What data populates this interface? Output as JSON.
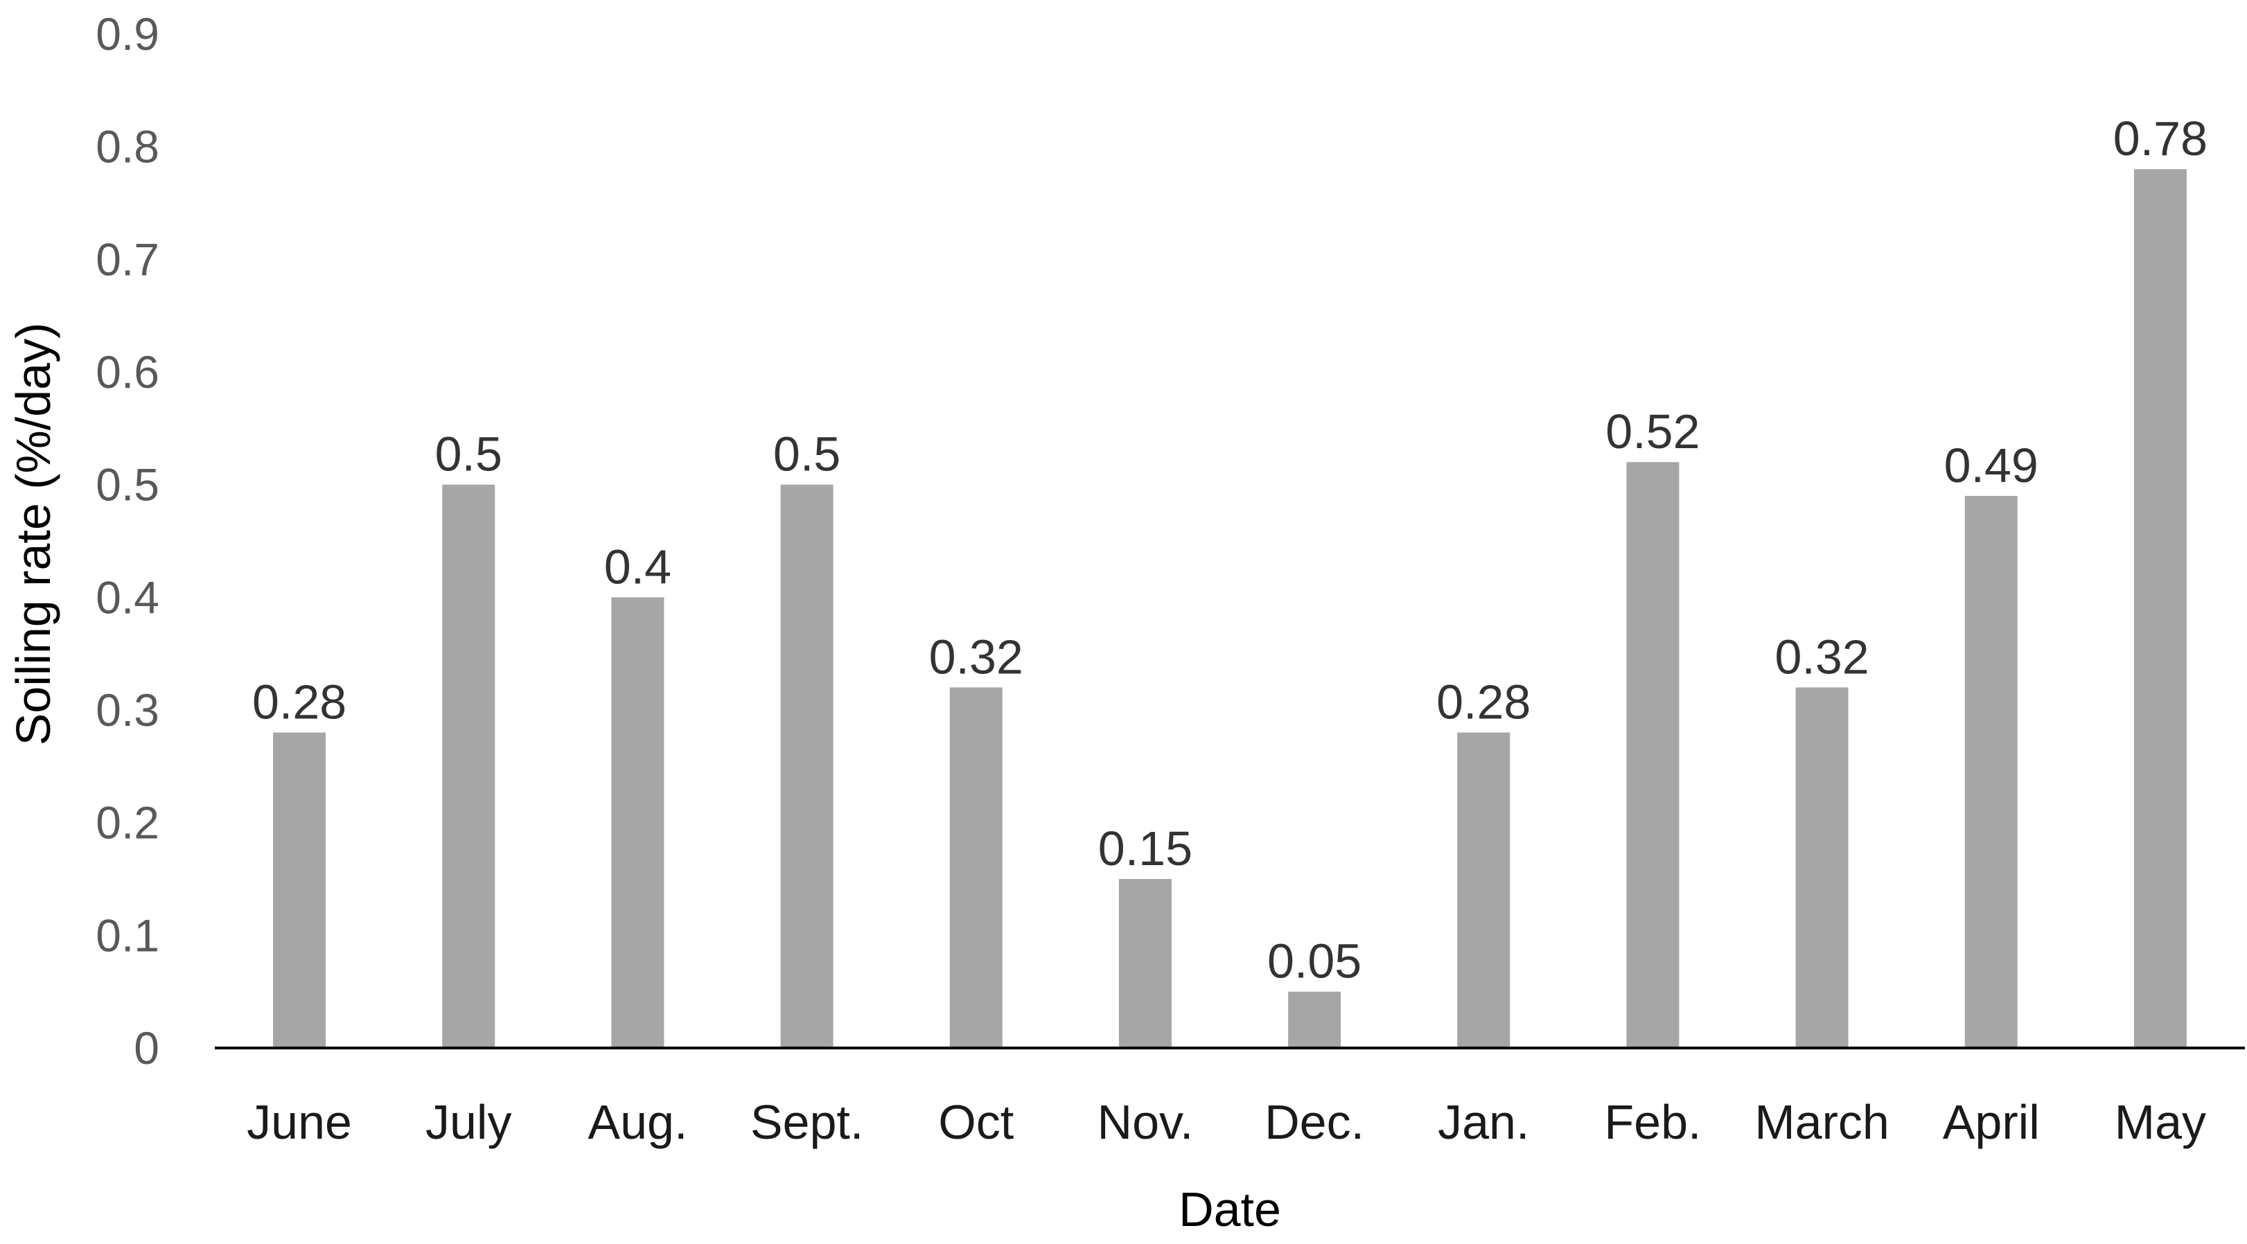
{
  "chart_data": {
    "type": "bar",
    "title": "",
    "xlabel": "Date",
    "ylabel": "Soiling rate (%/day)",
    "ylim": [
      0,
      0.9
    ],
    "yticks": [
      "0",
      "0.1",
      "0.2",
      "0.3",
      "0.4",
      "0.5",
      "0.6",
      "0.7",
      "0.8",
      "0.9"
    ],
    "categories": [
      "June",
      "July",
      "Aug.",
      "Sept.",
      "Oct",
      "Nov.",
      "Dec.",
      "Jan.",
      "Feb.",
      "March",
      "April",
      "May"
    ],
    "values": [
      0.28,
      0.5,
      0.4,
      0.5,
      0.32,
      0.15,
      0.05,
      0.28,
      0.52,
      0.32,
      0.49,
      0.78
    ],
    "data_labels": [
      "0.28",
      "0.5",
      "0.4",
      "0.5",
      "0.32",
      "0.15",
      "0.05",
      "0.28",
      "0.52",
      "0.32",
      "0.49",
      "0.78"
    ],
    "grid": false,
    "legend": "none",
    "bar_color": "#a6a6a6",
    "axis_color": "#000000"
  }
}
